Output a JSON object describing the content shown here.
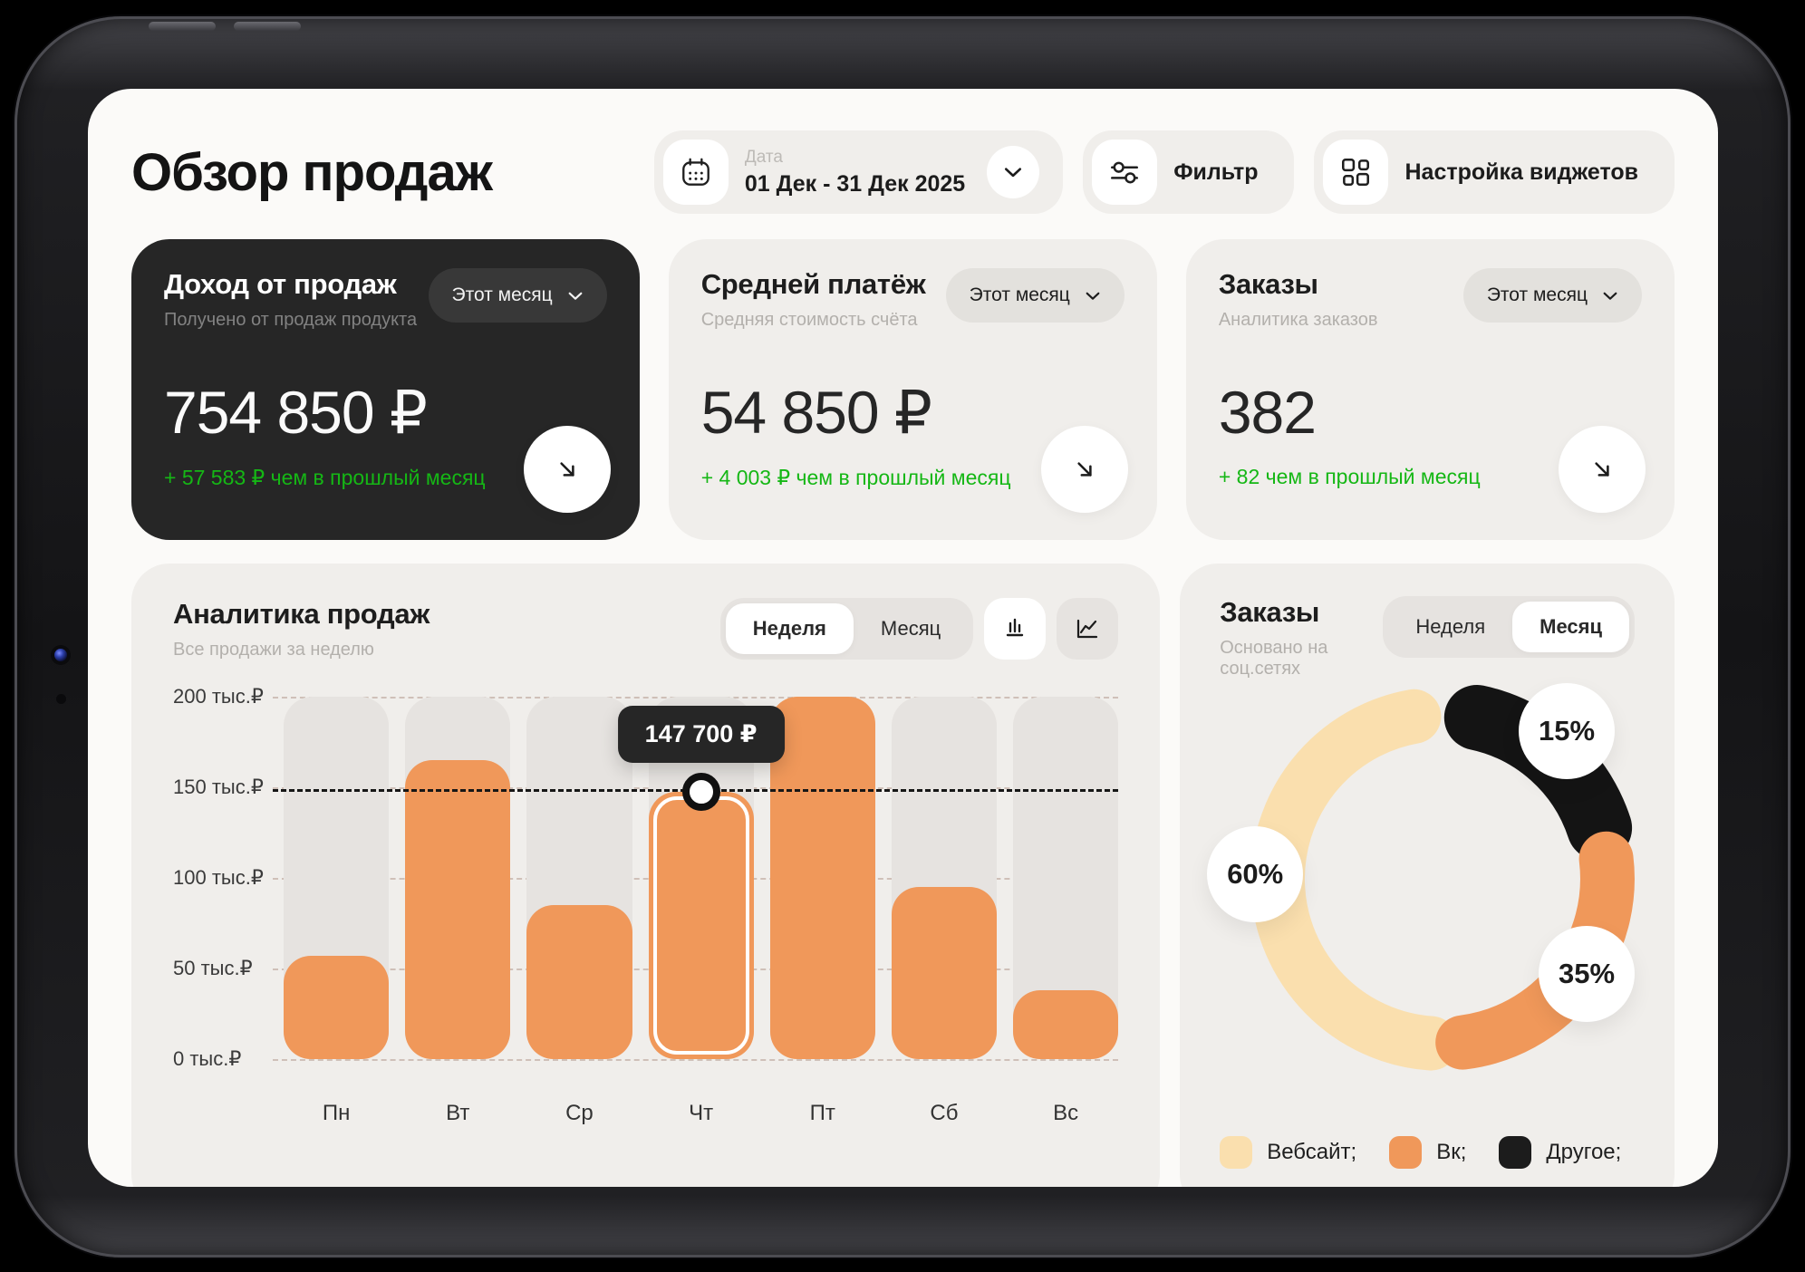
{
  "header": {
    "title": "Обзор продаж",
    "date": {
      "label": "Дата",
      "value": "01 Дек - 31 Дек 2025"
    },
    "filter_label": "Фильтр",
    "widgets_label": "Настройка виджетов"
  },
  "stats": [
    {
      "title": "Доход от продаж",
      "subtitle": "Получено от продаж продукта",
      "value": "754 850 ₽",
      "delta": "+ 57 583 ₽ чем в прошлый месяц",
      "period": "Этот месяц"
    },
    {
      "title": "Средней платёж",
      "subtitle": "Средняя стоимость счёта",
      "value": "54 850 ₽",
      "delta": "+ 4 003 ₽ чем в прошлый месяц",
      "period": "Этот месяц"
    },
    {
      "title": "Заказы",
      "subtitle": "Аналитика заказов",
      "value": "382",
      "delta": "+ 82 чем в прошлый месяц",
      "period": "Этот месяц"
    }
  ],
  "sales_analytics": {
    "title": "Аналитика продаж",
    "subtitle": "Все продажи за неделю",
    "toggle": {
      "week": "Неделя",
      "month": "Месяц",
      "active": "week"
    }
  },
  "orders_chart": {
    "title": "Заказы",
    "subtitle": "Основано на соц.сетях",
    "toggle": {
      "week": "Неделя",
      "month": "Месяц",
      "active": "month"
    },
    "badges": {
      "website": "60%",
      "vk": "35%",
      "other": "15%"
    },
    "legend": [
      {
        "label": "Вебсайт;",
        "color": "#FADFAE"
      },
      {
        "label": "Вк;",
        "color": "#F0985A"
      },
      {
        "label": "Другое;",
        "color": "#1C1C1C"
      }
    ]
  },
  "chart_data": [
    {
      "type": "bar",
      "title": "Аналитика продаж",
      "categories": [
        "Пн",
        "Вт",
        "Ср",
        "Чт",
        "Пт",
        "Сб",
        "Вс"
      ],
      "values": [
        57000,
        165000,
        85000,
        147700,
        200000,
        95000,
        38000
      ],
      "ylabel": "тыс.₽",
      "ytick_labels": [
        "200 тыс.₽",
        "150 тыс.₽",
        "100 тыс.₽",
        "50 тыс.₽",
        "0 тыс.₽"
      ],
      "ylim": [
        0,
        200000
      ],
      "grid": true,
      "highlight_index": 3,
      "highlight_label": "147 700 ₽",
      "bar_color": "#F0985A",
      "track_color": "#E6E3E0"
    },
    {
      "type": "pie",
      "title": "Заказы",
      "segments": [
        {
          "label": "Вебсайт",
          "value_pct": 60,
          "color": "#FADFAE"
        },
        {
          "label": "Вк",
          "value_pct": 35,
          "color": "#F0985A"
        },
        {
          "label": "Другое",
          "value_pct": 15,
          "color": "#141414"
        }
      ],
      "legend_position": "bottom"
    }
  ],
  "colors": {
    "screen_bg": "#FBFAF8",
    "card_bg": "#F0EEEB",
    "dark_card_bg": "#262626",
    "accent_orange": "#F0985A",
    "accent_cream": "#FADFAE",
    "positive_green": "#15B715"
  }
}
